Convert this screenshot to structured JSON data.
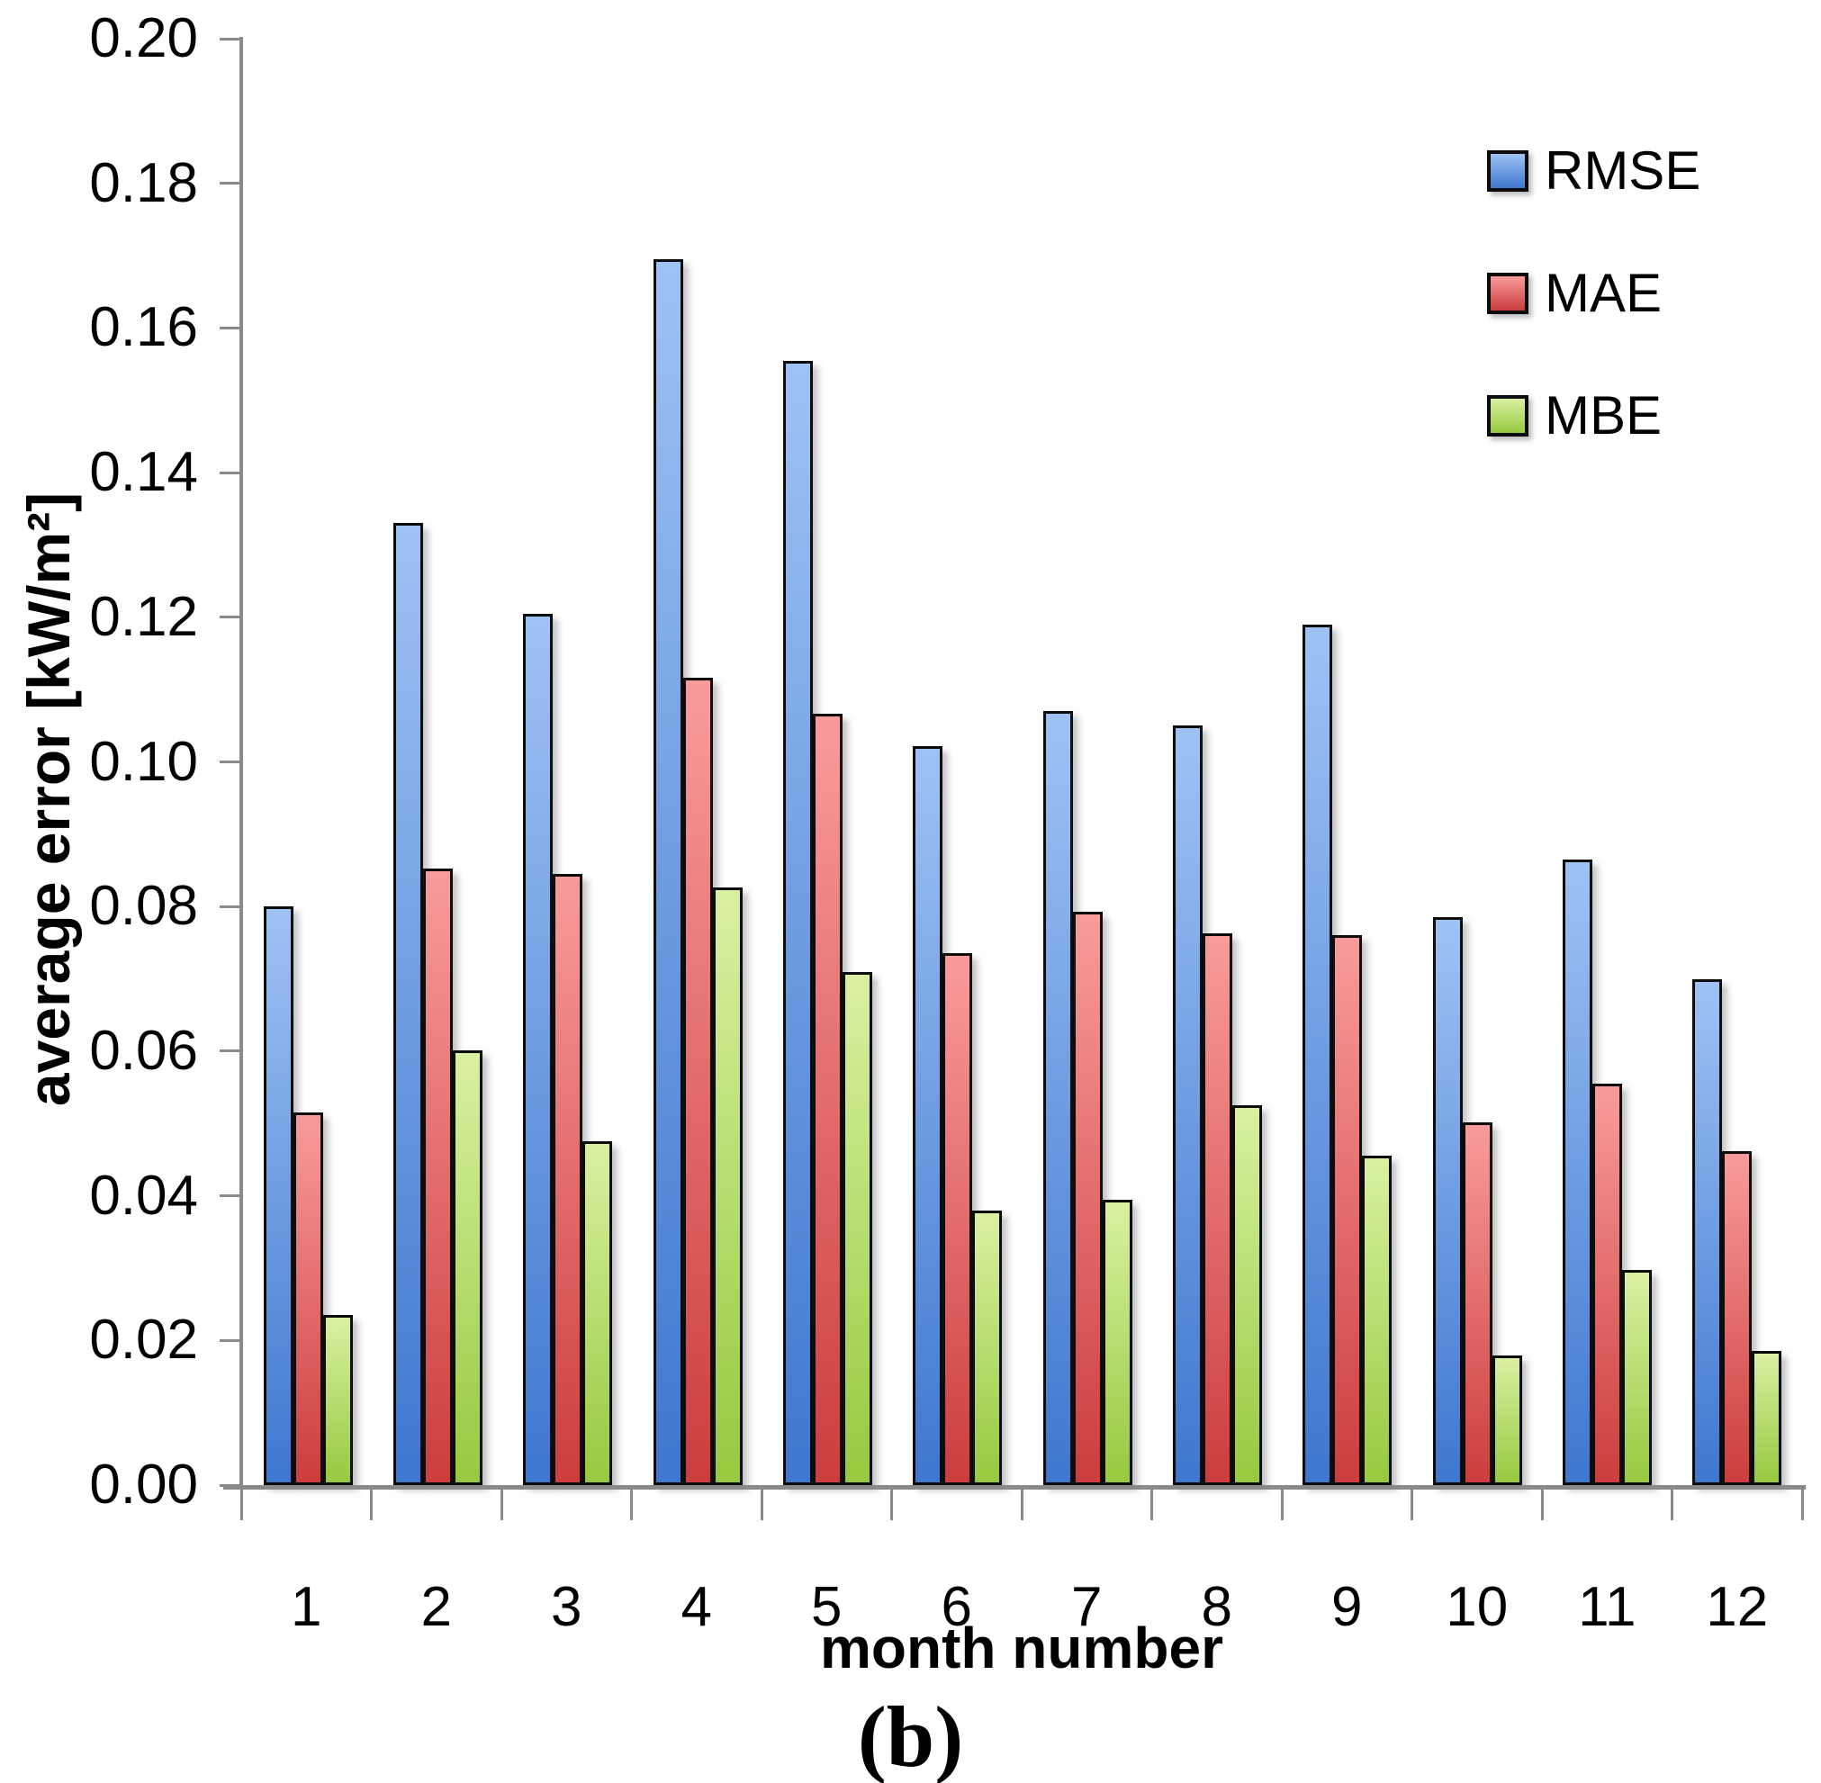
{
  "figure": {
    "caption": "(b)"
  },
  "chart_data": {
    "type": "bar",
    "title": "",
    "xlabel": "month number",
    "ylabel": "average error [kW/m²]",
    "categories": [
      "1",
      "2",
      "3",
      "4",
      "5",
      "6",
      "7",
      "8",
      "9",
      "10",
      "11",
      "12"
    ],
    "series": [
      {
        "name": "RMSE",
        "color_top": "#9FC2F4",
        "color_bottom": "#3F77CF",
        "values": [
          0.08,
          0.133,
          0.1205,
          0.1695,
          0.1555,
          0.1022,
          0.107,
          0.1051,
          0.119,
          0.0785,
          0.0865,
          0.07
        ]
      },
      {
        "name": "MAE",
        "color_top": "#F99B9B",
        "color_bottom": "#CC3D3D",
        "values": [
          0.0515,
          0.0853,
          0.0845,
          0.1117,
          0.1066,
          0.0735,
          0.0793,
          0.0763,
          0.076,
          0.0502,
          0.0555,
          0.0462
        ]
      },
      {
        "name": "MBE",
        "color_top": "#D9F0A2",
        "color_bottom": "#96C93F",
        "values": [
          0.0235,
          0.0601,
          0.0476,
          0.0826,
          0.071,
          0.038,
          0.0394,
          0.0525,
          0.0455,
          0.0179,
          0.0298,
          0.0185
        ]
      }
    ],
    "ylim": [
      0.0,
      0.2
    ],
    "ytick_step": 0.02,
    "yticks": [
      "0.00",
      "0.02",
      "0.04",
      "0.06",
      "0.08",
      "0.10",
      "0.12",
      "0.14",
      "0.16",
      "0.18",
      "0.20"
    ],
    "grid": false,
    "legend_position": "top-right",
    "axis_color": "#8A8A8A",
    "bar_border_color": "#0C0C0C"
  }
}
